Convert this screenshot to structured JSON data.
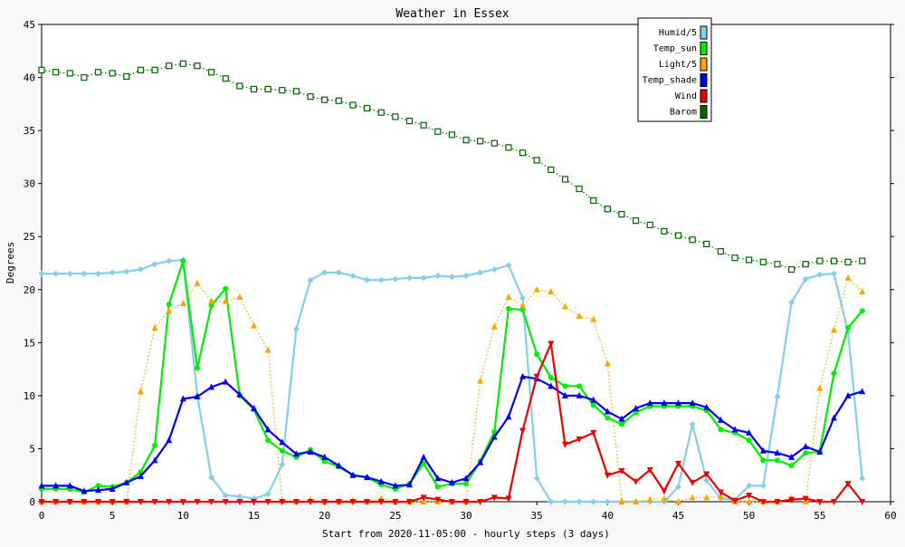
{
  "chart_data": {
    "type": "line",
    "title": "Weather in Essex",
    "xlabel": "Start from 2020-11-05:00 - hourly steps (3 days)",
    "ylabel": "Degrees",
    "xlim": [
      0,
      60
    ],
    "ylim": [
      0,
      45
    ],
    "xticks": [
      "0",
      "5",
      "10",
      "15",
      "20",
      "25",
      "30",
      "35",
      "40",
      "45",
      "50",
      "55",
      "60"
    ],
    "yticks": [
      "0",
      "5",
      "10",
      "15",
      "20",
      "25",
      "30",
      "35",
      "40",
      "45"
    ],
    "grid": false,
    "legend_position": "top-right",
    "series": [
      {
        "name": "Humid/5",
        "color": "#87CEEB",
        "marker": "diamond",
        "dash": "solid",
        "values": [
          21.5,
          21.5,
          21.5,
          21.5,
          21.5,
          21.6,
          21.7,
          21.9,
          22.4,
          22.7,
          22.8,
          10.0,
          2.3,
          0.6,
          0.5,
          0.3,
          0.7,
          3.5,
          16.3,
          20.9,
          21.6,
          21.6,
          21.3,
          20.9,
          20.9,
          21.0,
          21.1,
          21.1,
          21.3,
          21.2,
          21.3,
          21.6,
          21.9,
          22.3,
          19.2,
          2.2,
          0.0,
          0.0,
          0.0,
          0.0,
          0.0,
          0.0,
          0.0,
          0.0,
          0.0,
          1.4,
          7.3,
          2.0,
          0.3,
          0.2,
          1.5,
          1.5,
          9.9,
          18.8,
          21.0,
          21.4,
          21.5,
          16.0,
          2.2
        ]
      },
      {
        "name": "Temp_sun",
        "color": "#00EE00",
        "marker": "circle",
        "dash": "solid",
        "values": [
          1.2,
          1.2,
          1.2,
          0.9,
          1.5,
          1.4,
          1.8,
          2.8,
          5.3,
          18.6,
          22.7,
          12.6,
          18.5,
          20.1,
          10.0,
          8.7,
          5.8,
          4.8,
          4.2,
          4.9,
          3.8,
          3.3,
          2.5,
          2.3,
          1.6,
          1.2,
          1.7,
          3.6,
          1.4,
          1.7,
          1.7,
          3.8,
          6.6,
          18.2,
          18.1,
          13.9,
          11.7,
          10.9,
          10.9,
          9.1,
          7.9,
          7.3,
          8.4,
          9.0,
          9.0,
          9.0,
          9.0,
          8.6,
          6.8,
          6.5,
          5.8,
          3.9,
          3.9,
          3.4,
          4.6,
          4.7,
          12.1,
          16.4,
          18.0
        ]
      },
      {
        "name": "Light/5",
        "color": "#FFA500",
        "marker": "triangle-up",
        "dash": "dotted",
        "values": [
          0.0,
          0.0,
          0.0,
          0.0,
          0.0,
          0.0,
          0.0,
          10.4,
          16.4,
          18.0,
          18.7,
          20.6,
          18.9,
          18.9,
          19.3,
          16.6,
          14.3,
          0.1,
          0.0,
          0.2,
          0.0,
          0.0,
          0.1,
          0.0,
          0.3,
          0.0,
          0.0,
          0.0,
          0.0,
          0.0,
          0.0,
          11.4,
          16.5,
          19.3,
          18.5,
          20.0,
          19.8,
          18.4,
          17.5,
          17.2,
          13.0,
          0.0,
          0.0,
          0.2,
          0.3,
          0.0,
          0.4,
          0.4,
          0.5,
          0.0,
          0.0,
          0.0,
          0.0,
          0.3,
          0.0,
          10.7,
          16.2,
          21.1,
          19.8
        ]
      },
      {
        "name": "Temp_shade",
        "color": "#0000EE",
        "marker": "triangle-up",
        "dash": "solid",
        "values": [
          1.5,
          1.5,
          1.5,
          1.0,
          1.1,
          1.2,
          1.8,
          2.4,
          3.9,
          5.8,
          9.7,
          9.9,
          10.8,
          11.3,
          10.1,
          8.8,
          6.8,
          5.6,
          4.5,
          4.7,
          4.2,
          3.4,
          2.5,
          2.3,
          1.9,
          1.5,
          1.6,
          4.2,
          2.2,
          1.8,
          2.2,
          3.7,
          6.1,
          8.0,
          11.8,
          11.6,
          10.9,
          10.0,
          10.0,
          9.6,
          8.5,
          7.8,
          8.8,
          9.3,
          9.3,
          9.3,
          9.3,
          8.9,
          7.7,
          6.8,
          6.5,
          4.8,
          4.6,
          4.2,
          5.2,
          4.7,
          7.9,
          10.0,
          10.4
        ]
      },
      {
        "name": "Wind",
        "color": "#EE0000",
        "marker": "triangle-down",
        "dash": "solid",
        "values": [
          0,
          0,
          0,
          0,
          0,
          0,
          0,
          0,
          0,
          0,
          0,
          0,
          0,
          0,
          0,
          0,
          0,
          0,
          0,
          0,
          0,
          0,
          0,
          0,
          0,
          0,
          0,
          0.4,
          0.2,
          0,
          0,
          0,
          0.4,
          0.3,
          6.7,
          11.8,
          14.9,
          5.4,
          5.9,
          6.5,
          2.5,
          2.9,
          1.9,
          3.0,
          1.0,
          3.6,
          1.8,
          2.6,
          0.9,
          0.1,
          0.6,
          0,
          0,
          0.2,
          0.3,
          0,
          0,
          1.7,
          0
        ]
      },
      {
        "name": "Barom",
        "color": "#006600",
        "marker": "square-open",
        "dash": "dotted",
        "values": [
          40.7,
          40.5,
          40.4,
          40.0,
          40.5,
          40.4,
          40.1,
          40.7,
          40.7,
          41.1,
          41.3,
          41.1,
          40.5,
          39.9,
          39.2,
          38.9,
          38.9,
          38.8,
          38.7,
          38.2,
          37.9,
          37.8,
          37.4,
          37.1,
          36.7,
          36.3,
          35.9,
          35.5,
          34.9,
          34.6,
          34.1,
          34.0,
          33.8,
          33.4,
          32.9,
          32.2,
          31.3,
          30.4,
          29.5,
          28.4,
          27.6,
          27.1,
          26.5,
          26.1,
          25.5,
          25.1,
          24.7,
          24.3,
          23.6,
          23.0,
          22.8,
          22.6,
          22.4,
          21.9,
          22.4,
          22.7,
          22.7,
          22.6,
          22.7
        ]
      }
    ]
  }
}
